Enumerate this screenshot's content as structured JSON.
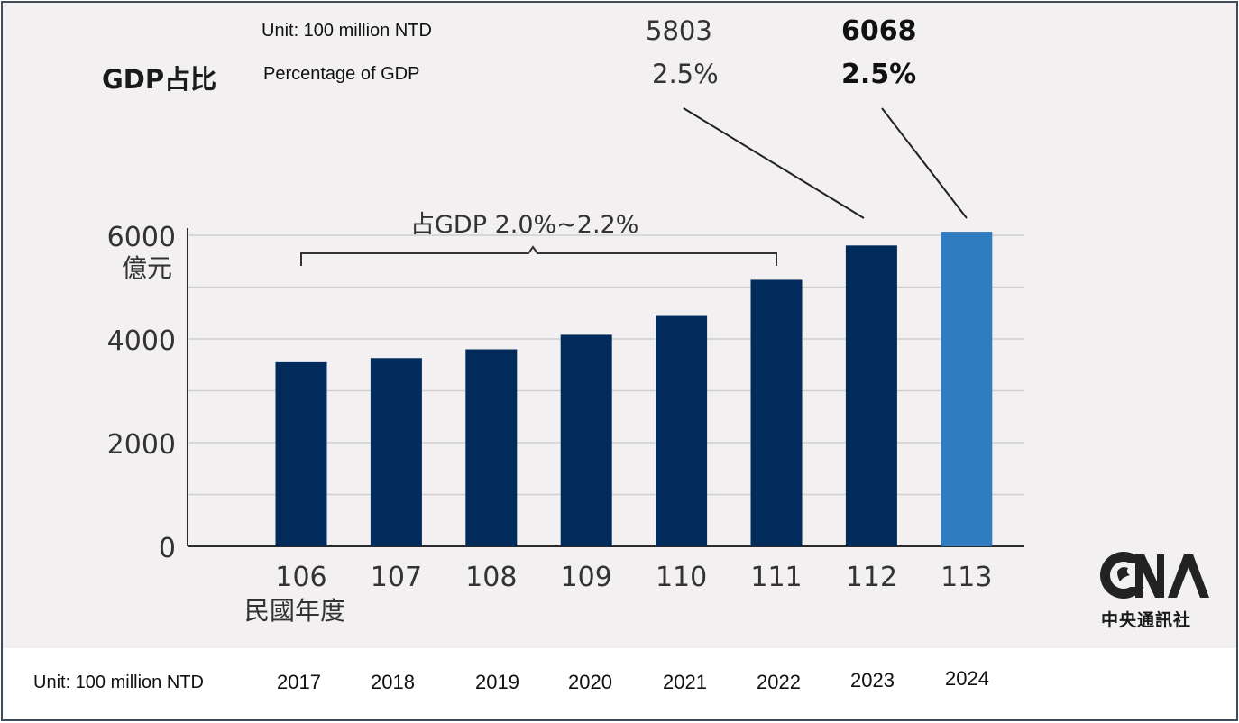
{
  "header": {
    "unit_label": "Unit: 100 million NTD",
    "gdp_ratio_label": "GDP占比",
    "percentage_label": "Percentage of GDP"
  },
  "callouts": [
    {
      "year": "112",
      "value": "5803",
      "percent": "2.5%",
      "bold": false
    },
    {
      "year": "113",
      "value": "6068",
      "percent": "2.5%",
      "bold": true
    }
  ],
  "bracket_label": "占GDP 2.0%~2.2%",
  "logo": {
    "letters": "CNA",
    "caption": "中央通訊社"
  },
  "bottom": {
    "unit_label": "Unit: 100 million NTD",
    "years": [
      "2017",
      "2018",
      "2019",
      "2020",
      "2021",
      "2022",
      "2023",
      "2024"
    ]
  },
  "chart_data": {
    "type": "bar",
    "categories": [
      "106",
      "107",
      "108",
      "109",
      "110",
      "111",
      "112",
      "113"
    ],
    "values": [
      3550,
      3630,
      3800,
      4080,
      4460,
      5140,
      5803,
      6068
    ],
    "xlabel": "民國年度",
    "ylabel": "億元",
    "ylim": [
      0,
      6000
    ],
    "yticks": [
      "0",
      "2000",
      "4000",
      "6000"
    ],
    "grid": true,
    "colors": {
      "bar": "#002b5b",
      "highlight": "#2f7cc0",
      "grid": "#cfcfcf",
      "axis": "#2a2a2a"
    }
  }
}
